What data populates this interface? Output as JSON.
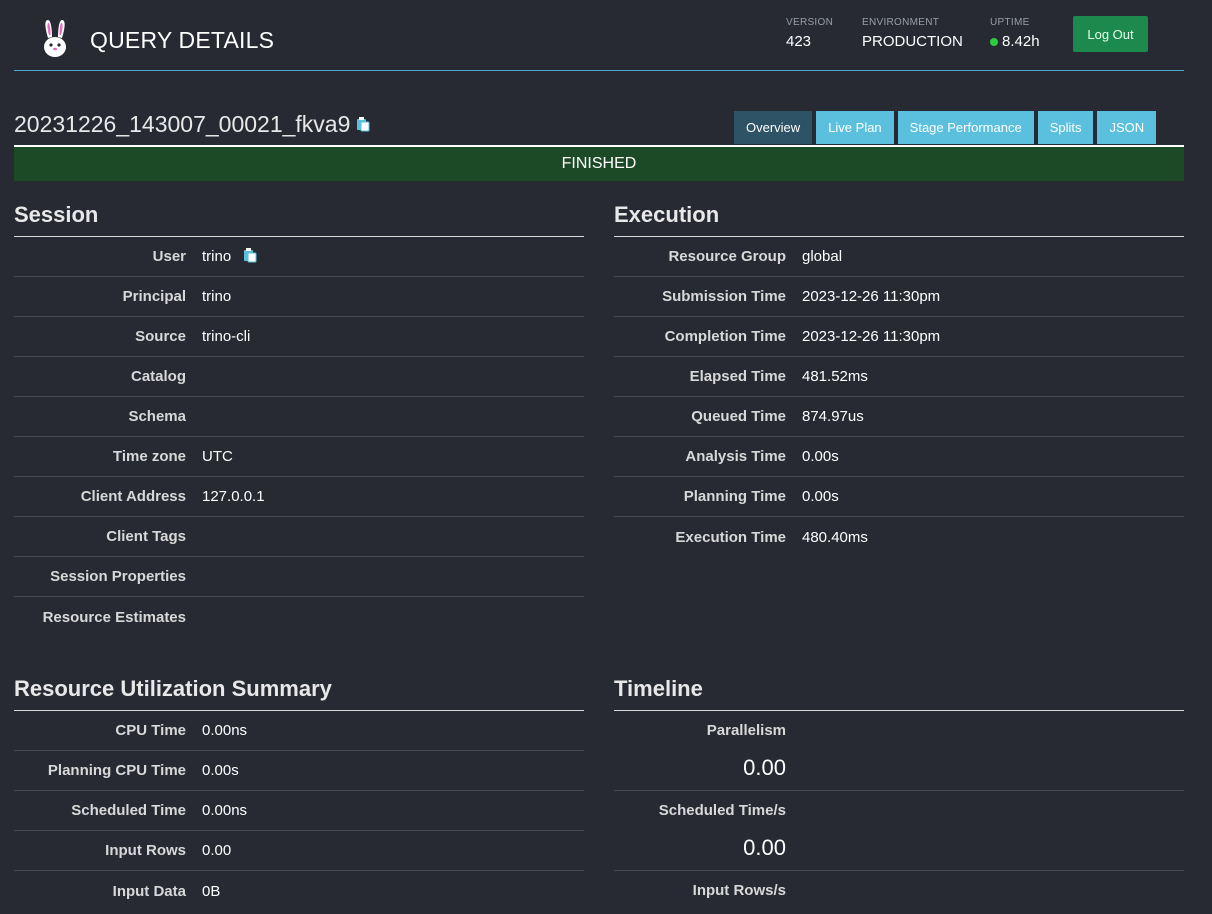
{
  "header": {
    "title": "QUERY DETAILS",
    "version_label": "VERSION",
    "version": "423",
    "environment_label": "ENVIRONMENT",
    "environment": "PRODUCTION",
    "uptime_label": "UPTIME",
    "uptime": "8.42h",
    "logout_label": "Log Out"
  },
  "query": {
    "id": "20231226_143007_00021_fkva9",
    "state": "FINISHED"
  },
  "tabs": [
    {
      "label": "Overview",
      "active": true
    },
    {
      "label": "Live Plan",
      "active": false
    },
    {
      "label": "Stage Performance",
      "active": false
    },
    {
      "label": "Splits",
      "active": false
    },
    {
      "label": "JSON",
      "active": false
    }
  ],
  "session": {
    "title": "Session",
    "rows": [
      {
        "key": "User",
        "value": "trino"
      },
      {
        "key": "Principal",
        "value": "trino"
      },
      {
        "key": "Source",
        "value": "trino-cli"
      },
      {
        "key": "Catalog",
        "value": ""
      },
      {
        "key": "Schema",
        "value": ""
      },
      {
        "key": "Time zone",
        "value": "UTC"
      },
      {
        "key": "Client Address",
        "value": "127.0.0.1"
      },
      {
        "key": "Client Tags",
        "value": ""
      },
      {
        "key": "Session Properties",
        "value": ""
      },
      {
        "key": "Resource Estimates",
        "value": ""
      }
    ]
  },
  "execution": {
    "title": "Execution",
    "rows": [
      {
        "key": "Resource Group",
        "value": "global"
      },
      {
        "key": "Submission Time",
        "value": "2023-12-26 11:30pm"
      },
      {
        "key": "Completion Time",
        "value": "2023-12-26 11:30pm"
      },
      {
        "key": "Elapsed Time",
        "value": "481.52ms"
      },
      {
        "key": "Queued Time",
        "value": "874.97us"
      },
      {
        "key": "Analysis Time",
        "value": "0.00s"
      },
      {
        "key": "Planning Time",
        "value": "0.00s"
      },
      {
        "key": "Execution Time",
        "value": "480.40ms"
      }
    ]
  },
  "resources": {
    "title": "Resource Utilization Summary",
    "rows": [
      {
        "key": "CPU Time",
        "value": "0.00ns"
      },
      {
        "key": "Planning CPU Time",
        "value": "0.00s"
      },
      {
        "key": "Scheduled Time",
        "value": "0.00ns"
      },
      {
        "key": "Input Rows",
        "value": "0.00"
      },
      {
        "key": "Input Data",
        "value": "0B"
      }
    ]
  },
  "timeline": {
    "title": "Timeline",
    "rows": [
      {
        "key": "Parallelism",
        "value": "0.00"
      },
      {
        "key": "Scheduled Time/s",
        "value": "0.00"
      },
      {
        "key": "Input Rows/s",
        "value": ""
      }
    ]
  },
  "colors": {
    "background": "#272a33",
    "accent": "#5bc0de",
    "finished": "#1c4a26",
    "logout": "#1b8a4c"
  }
}
